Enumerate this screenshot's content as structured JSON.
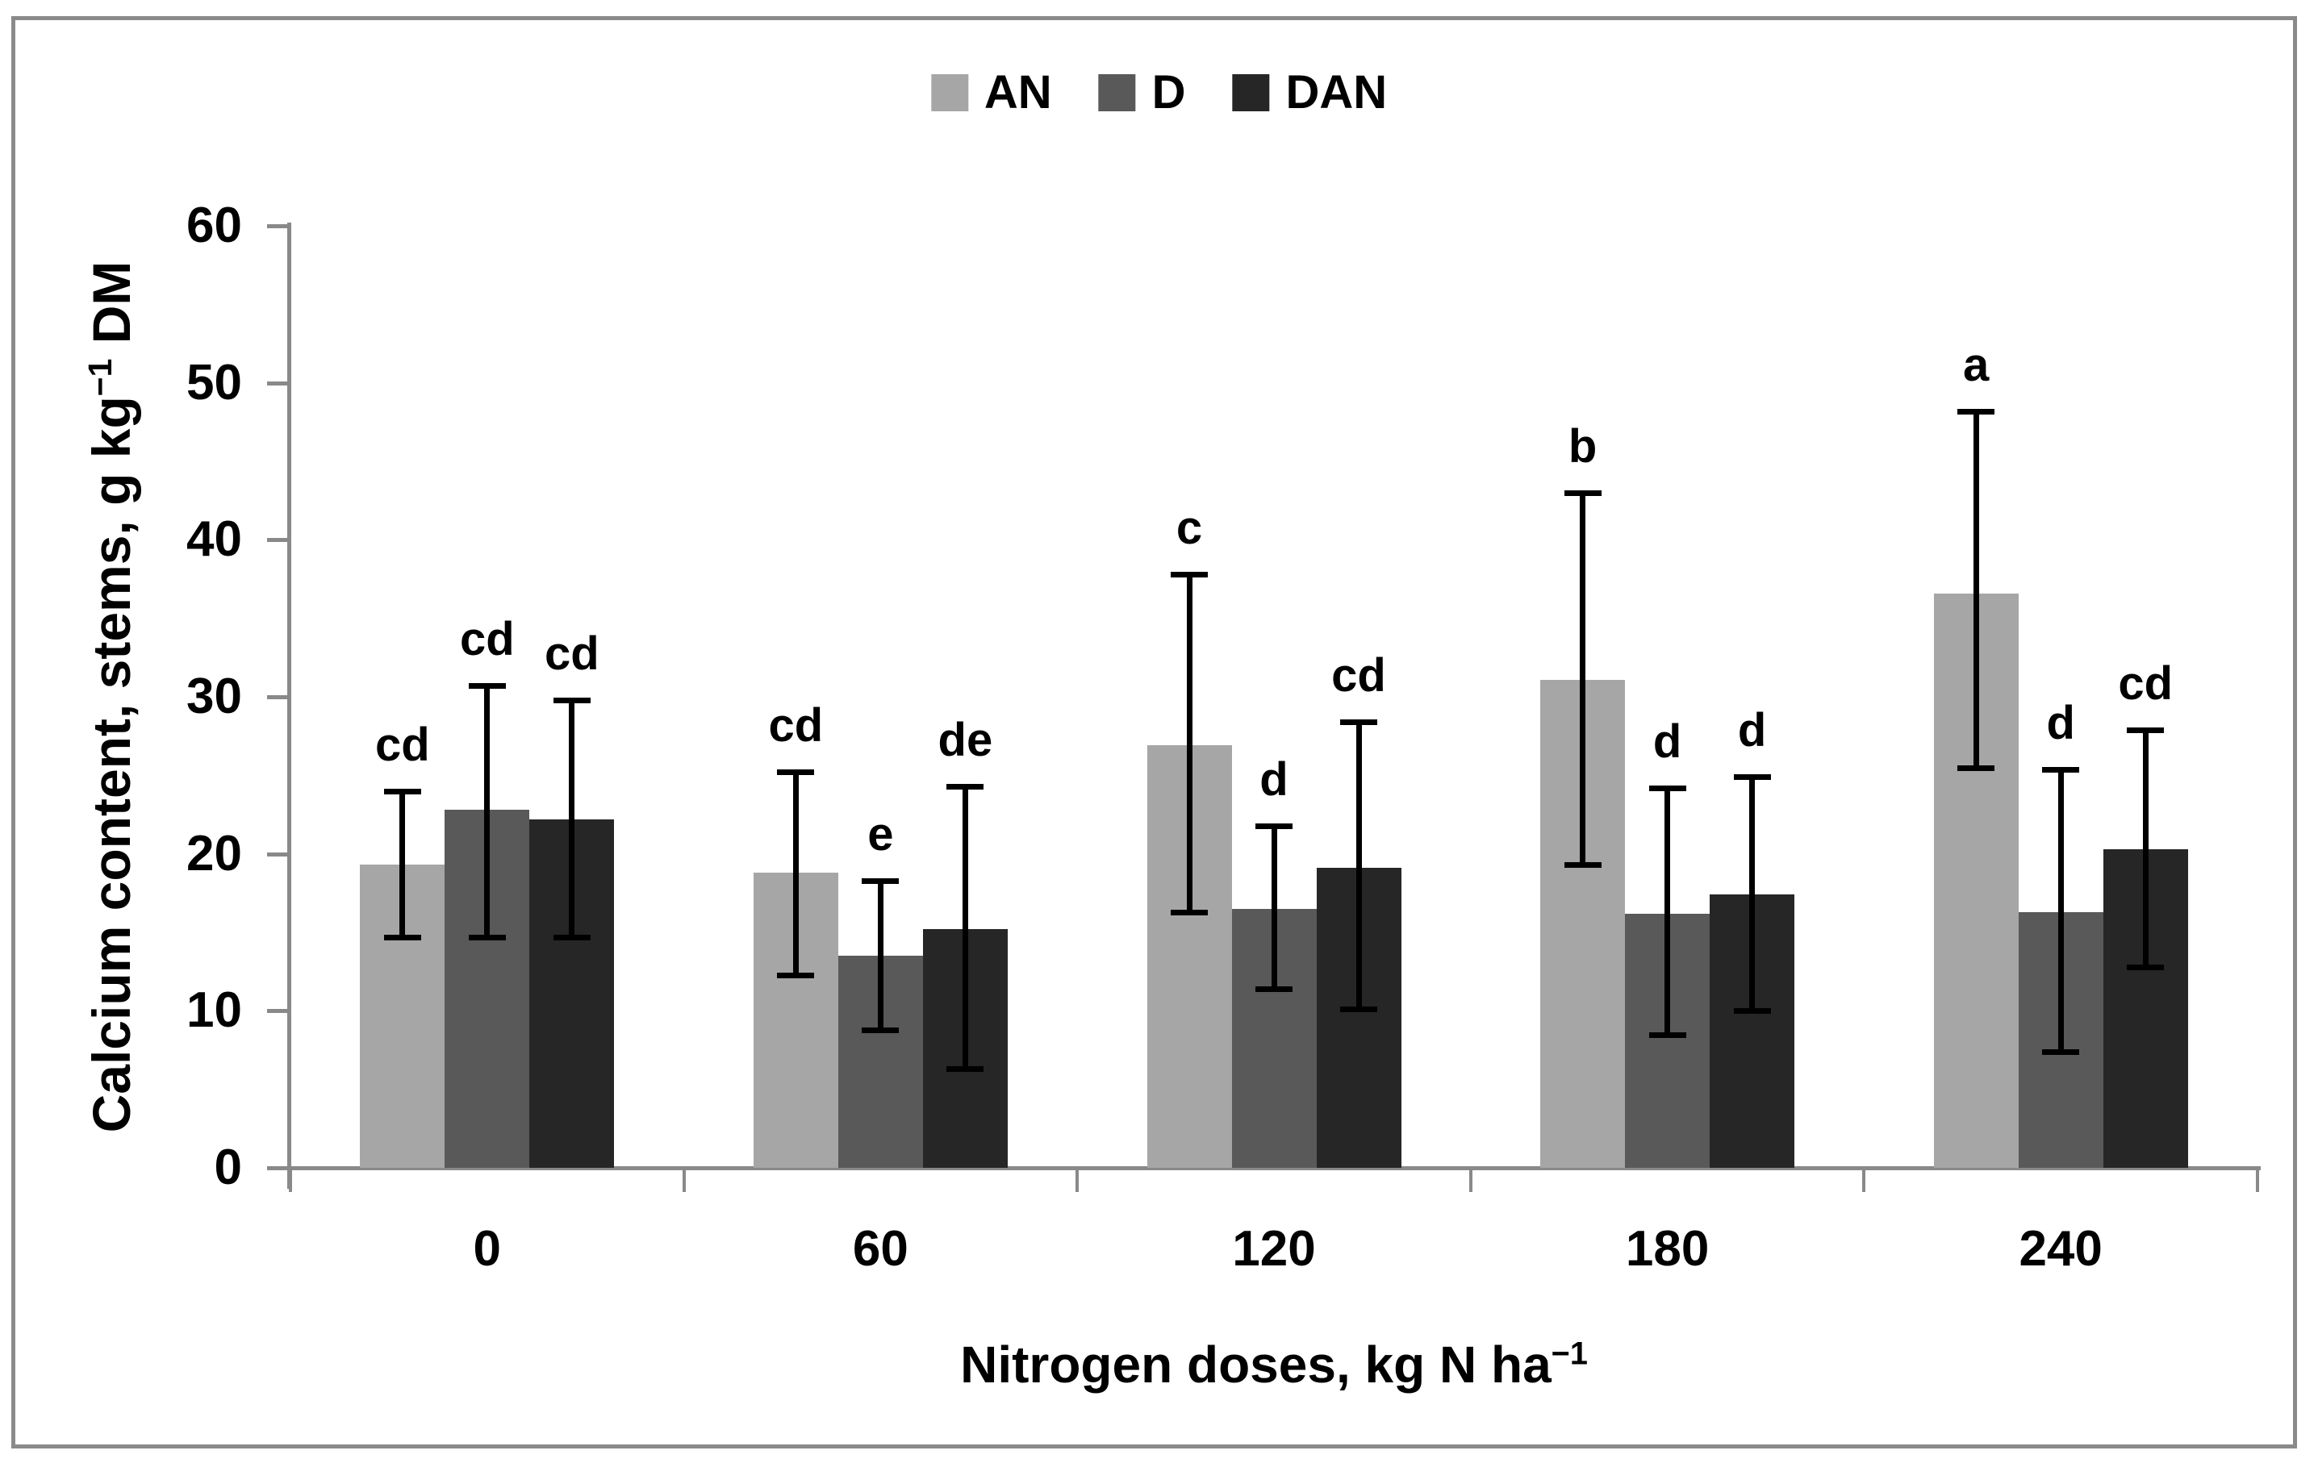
{
  "yaxis": {
    "title_base": "Calcium content, stems, g kg",
    "title_sup": "−1",
    "title_suffix": " DM",
    "tick_labels": [
      "0",
      "10",
      "20",
      "30",
      "40",
      "50",
      "60"
    ]
  },
  "xaxis": {
    "title_base": "Nitrogen doses, kg N ha",
    "title_sup": "−1",
    "categories": [
      "0",
      "60",
      "120",
      "180",
      "240"
    ]
  },
  "colors": {
    "axis": "#898989",
    "figure_border": "#8a8a8a",
    "text": "#000000"
  },
  "chart_data": {
    "type": "bar",
    "title": "",
    "xlabel": "Nitrogen doses, kg N ha⁻¹",
    "ylabel": "Calcium content, stems, g kg⁻¹ DM",
    "ylim": [
      0,
      60
    ],
    "yticks": [
      0,
      10,
      20,
      30,
      40,
      50,
      60
    ],
    "grid": false,
    "legend_position": "top-center",
    "error_bars": true,
    "categories": [
      "0",
      "60",
      "120",
      "180",
      "240"
    ],
    "series": [
      {
        "name": "AN",
        "color": "#a6a6a6",
        "values": [
          19.3,
          18.8,
          26.9,
          31.1,
          36.6
        ],
        "err_low": [
          14.7,
          12.3,
          16.3,
          19.3,
          25.5
        ],
        "err_high": [
          24.0,
          25.2,
          37.8,
          43.0,
          48.2
        ],
        "sig_labels": [
          "cd",
          "cd",
          "c",
          "b",
          "a"
        ]
      },
      {
        "name": "D",
        "color": "#595959",
        "values": [
          22.8,
          13.5,
          16.5,
          16.2,
          16.3
        ],
        "err_low": [
          14.7,
          8.8,
          11.4,
          8.5,
          7.4
        ],
        "err_high": [
          30.7,
          18.3,
          21.8,
          24.2,
          25.4
        ],
        "sig_labels": [
          "cd",
          "e",
          "d",
          "d",
          "d"
        ]
      },
      {
        "name": "DAN",
        "color": "#262626",
        "values": [
          22.2,
          15.2,
          19.1,
          17.4,
          20.3
        ],
        "err_low": [
          14.7,
          6.3,
          10.1,
          10.0,
          12.8
        ],
        "err_high": [
          29.8,
          24.3,
          28.4,
          24.9,
          27.9
        ],
        "sig_labels": [
          "cd",
          "de",
          "cd",
          "d",
          "cd"
        ]
      }
    ]
  }
}
